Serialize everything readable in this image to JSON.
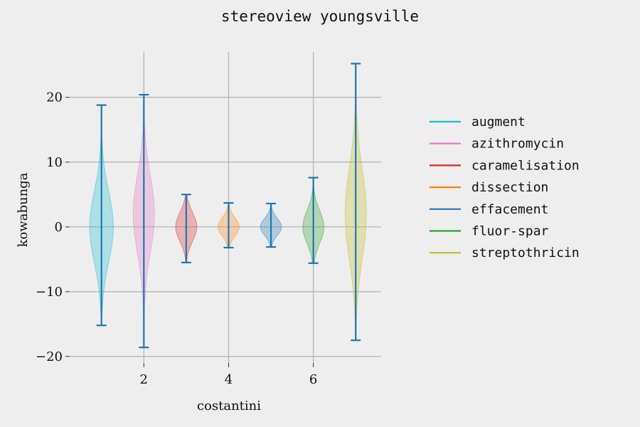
{
  "chart_data": {
    "type": "violin",
    "title": "stereoview youngsville",
    "xlabel": "costantini",
    "ylabel": "kowabunga",
    "xlim": [
      0.25,
      7.6
    ],
    "ylim": [
      -21,
      27
    ],
    "xticks": [
      2,
      4,
      6
    ],
    "yticks": [
      -20,
      -10,
      0,
      10,
      20
    ],
    "ytick_labels": [
      "−20",
      "−10",
      "0",
      "10",
      "20"
    ],
    "grid": true,
    "legend_position": "right",
    "body_color": "#1f77b4",
    "series": [
      {
        "name": "augment",
        "x": 1,
        "min": -15.2,
        "max": 18.8,
        "center": 0,
        "width": 0.28,
        "sigma": 5.5,
        "color": "#17becf"
      },
      {
        "name": "azithromycin",
        "x": 2,
        "min": -18.6,
        "max": 20.4,
        "center": 2,
        "width": 0.25,
        "sigma": 6.0,
        "color": "#e377c2"
      },
      {
        "name": "caramelisation",
        "x": 3,
        "min": -5.5,
        "max": 5.0,
        "center": 0,
        "width": 0.25,
        "sigma": 2.2,
        "color": "#d62728"
      },
      {
        "name": "dissection",
        "x": 4,
        "min": -3.2,
        "max": 3.7,
        "center": 0,
        "width": 0.25,
        "sigma": 1.4,
        "color": "#ff7f0e"
      },
      {
        "name": "effacement",
        "x": 5,
        "min": -3.1,
        "max": 3.6,
        "center": 0,
        "width": 0.25,
        "sigma": 1.3,
        "color": "#1f77b4"
      },
      {
        "name": "fluor-spar",
        "x": 6,
        "min": -5.6,
        "max": 7.6,
        "center": 0,
        "width": 0.25,
        "sigma": 2.5,
        "color": "#2ca02c"
      },
      {
        "name": "streptothricin",
        "x": 7,
        "min": -17.5,
        "max": 25.2,
        "center": 2,
        "width": 0.25,
        "sigma": 7.0,
        "color": "#bcbd22"
      }
    ]
  }
}
